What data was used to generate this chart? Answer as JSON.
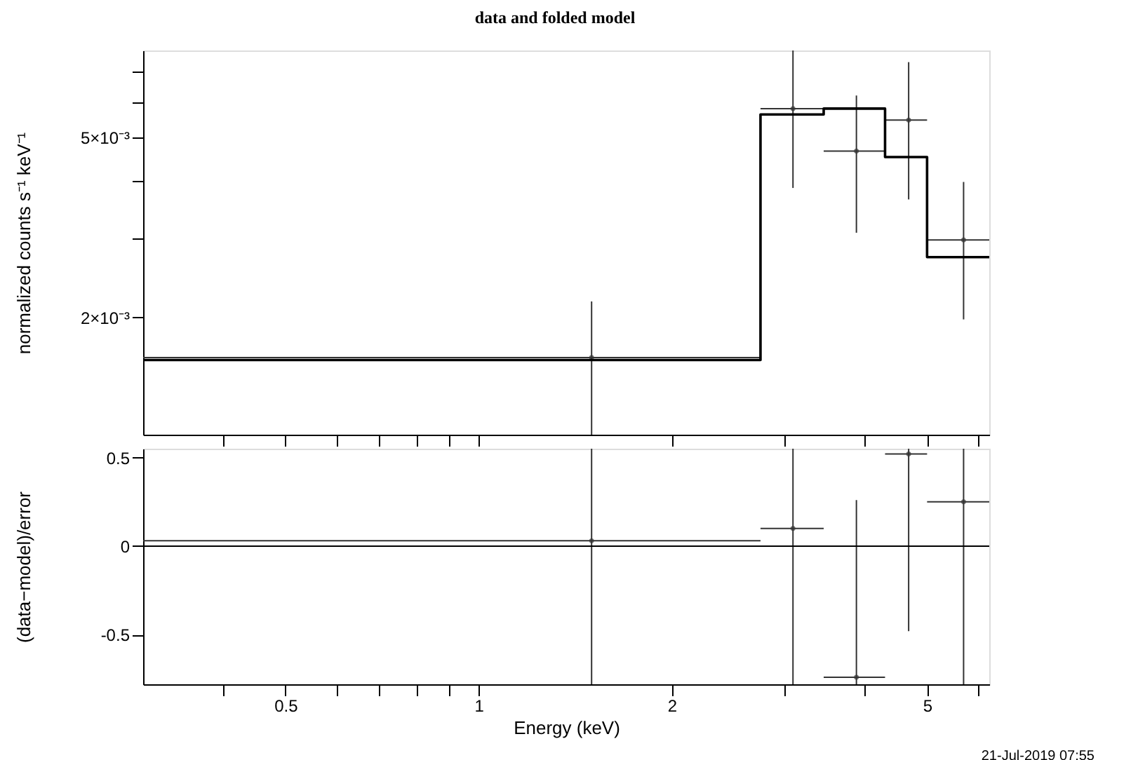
{
  "chart_data": [
    {
      "type": "scatter",
      "title": "data and folded model",
      "ylabel": "normalized counts s⁻¹ keV⁻¹",
      "log": "xy",
      "xlim": [
        0.3,
        6.25
      ],
      "ylim": [
        0.0011,
        0.0078
      ],
      "xticks": [
        {
          "value": 0.4,
          "label": null
        },
        0.5,
        {
          "value": 0.6,
          "label": null
        },
        {
          "value": 0.7,
          "label": null
        },
        {
          "value": 0.8,
          "label": null
        },
        {
          "value": 0.9,
          "label": null
        },
        1,
        2,
        {
          "value": 3,
          "label": null
        },
        {
          "value": 4,
          "label": null
        },
        5,
        {
          "value": 6,
          "label": null
        }
      ],
      "yticks": [
        {
          "value": 0.002,
          "label": "2×10⁻³"
        },
        {
          "value": 0.003,
          "label": null
        },
        {
          "value": 0.004,
          "label": null
        },
        {
          "value": 0.005,
          "label": "5×10⁻³"
        },
        {
          "value": 0.006,
          "label": null
        },
        {
          "value": 0.007,
          "label": null
        }
      ],
      "tick_labels": "y",
      "marker": "none",
      "grid": false,
      "series": [
        {
          "color": "#333333",
          "x": [
            1.5,
            3.09,
            3.88,
            4.68,
            5.7
          ],
          "values": [
            0.00163,
            0.0058,
            0.00467,
            0.00547,
            0.00297
          ],
          "errors": [
            [
              0.0011,
              0.00217
            ],
            [
              0.00387,
              0.0078
            ],
            [
              0.00308,
              0.0062
            ],
            [
              0.00365,
              0.00735
            ],
            [
              0.00198,
              0.00399
            ]
          ],
          "xerrors": [
            [
              0.3,
              2.75
            ],
            [
              2.75,
              3.45
            ],
            [
              3.45,
              4.3
            ],
            [
              4.3,
              5.0
            ],
            [
              5.0,
              6.25
            ]
          ]
        },
        {
          "type": "step",
          "color": "#000000",
          "x": [
            0.3,
            2.75,
            3.45,
            4.3,
            5.0,
            6.25
          ],
          "values": [
            0.00161,
            0.00563,
            0.0058,
            0.00453,
            0.00272,
            0.00272
          ]
        }
      ]
    },
    {
      "type": "scatter",
      "xlabel": "Energy (keV)",
      "ylabel": "(data−model)/error",
      "log": "x",
      "xlim": [
        0.3,
        6.25
      ],
      "ylim": [
        -0.78,
        0.55
      ],
      "xticks": [
        {
          "value": 0.4,
          "label": null
        },
        0.5,
        {
          "value": 0.6,
          "label": null
        },
        {
          "value": 0.7,
          "label": null
        },
        {
          "value": 0.8,
          "label": null
        },
        {
          "value": 0.9,
          "label": null
        },
        1,
        2,
        {
          "value": 3,
          "label": null
        },
        {
          "value": 4,
          "label": null
        },
        5,
        {
          "value": 6,
          "label": null
        }
      ],
      "yticks": [
        -0.5,
        0,
        0.5
      ],
      "marker": "none",
      "grid": false,
      "ref_lines": [
        {
          "axis": "y",
          "value": 0,
          "color": "#000000"
        }
      ],
      "annotations": [
        "21-Jul-2019 07:55"
      ],
      "series": [
        {
          "color": "#333333",
          "x": [
            1.5,
            3.09,
            3.88,
            4.68,
            5.7
          ],
          "values": [
            0.03,
            0.1,
            -0.74,
            0.52,
            0.25
          ],
          "errors": [
            [
              -0.78,
              0.55
            ],
            [
              -0.78,
              0.55
            ],
            [
              -0.78,
              0.26
            ],
            [
              -0.48,
              0.55
            ],
            [
              -0.78,
              0.55
            ]
          ],
          "xerrors": [
            [
              0.3,
              2.75
            ],
            [
              2.75,
              3.45
            ],
            [
              3.45,
              4.3
            ],
            [
              4.3,
              5.0
            ],
            [
              5.0,
              6.25
            ]
          ]
        }
      ]
    }
  ]
}
